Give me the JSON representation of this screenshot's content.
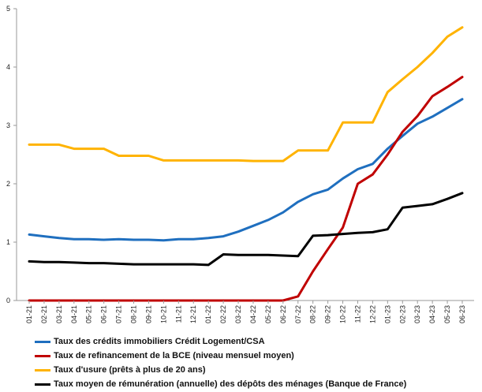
{
  "chart_data": {
    "type": "line",
    "title": "",
    "xlabel": "",
    "ylabel": "",
    "ylim": [
      0,
      5
    ],
    "yticks": [
      "0",
      "1",
      "2",
      "3",
      "4",
      "5"
    ],
    "grid": false,
    "legend_position": "bottom",
    "categories": [
      "01-21",
      "02-21",
      "03-21",
      "04-21",
      "05-21",
      "06-21",
      "07-21",
      "08-21",
      "09-21",
      "10-21",
      "11-21",
      "12-21",
      "01-22",
      "02-22",
      "03-22",
      "04-22",
      "05-22",
      "06-22",
      "07-22",
      "08-22",
      "09-22",
      "10-22",
      "11-22",
      "12-22",
      "01-23",
      "02-23",
      "03-23",
      "04-23",
      "05-23",
      "06-23"
    ],
    "series": [
      {
        "name": "Taux des crédits immobiliers Crédit Logement/CSA",
        "color": "#1f6fbf",
        "values": [
          1.13,
          1.1,
          1.07,
          1.05,
          1.05,
          1.04,
          1.05,
          1.04,
          1.04,
          1.03,
          1.05,
          1.05,
          1.07,
          1.1,
          1.18,
          1.28,
          1.38,
          1.51,
          1.69,
          1.82,
          1.9,
          2.09,
          2.25,
          2.34,
          2.6,
          2.82,
          3.03,
          3.15,
          3.3,
          3.45
        ]
      },
      {
        "name": "Taux de refinancement de la BCE (niveau mensuel moyen)",
        "color": "#c00000",
        "values": [
          0,
          0,
          0,
          0,
          0,
          0,
          0,
          0,
          0,
          0,
          0,
          0,
          0,
          0,
          0,
          0,
          0,
          0,
          0.07,
          0.5,
          0.88,
          1.25,
          2.0,
          2.16,
          2.5,
          2.89,
          3.16,
          3.5,
          3.66,
          3.83
        ]
      },
      {
        "name": "Taux d'usure (prêts à plus de 20 ans)",
        "color": "#ffb300",
        "values": [
          2.67,
          2.67,
          2.67,
          2.6,
          2.6,
          2.6,
          2.48,
          2.48,
          2.48,
          2.4,
          2.4,
          2.4,
          2.4,
          2.4,
          2.4,
          2.39,
          2.39,
          2.39,
          2.57,
          2.57,
          2.57,
          3.05,
          3.05,
          3.05,
          3.57,
          3.79,
          4.0,
          4.24,
          4.52,
          4.68
        ]
      },
      {
        "name": "Taux moyen de rémunération (annuelle) des dépôts des ménages (Banque de France)",
        "color": "#000000",
        "values": [
          0.67,
          0.66,
          0.66,
          0.65,
          0.64,
          0.64,
          0.63,
          0.62,
          0.62,
          0.62,
          0.62,
          0.62,
          0.61,
          0.79,
          0.78,
          0.78,
          0.78,
          0.77,
          0.76,
          1.11,
          1.12,
          1.14,
          1.16,
          1.17,
          1.22,
          1.59,
          1.62,
          1.65,
          1.74,
          1.84
        ]
      }
    ]
  }
}
